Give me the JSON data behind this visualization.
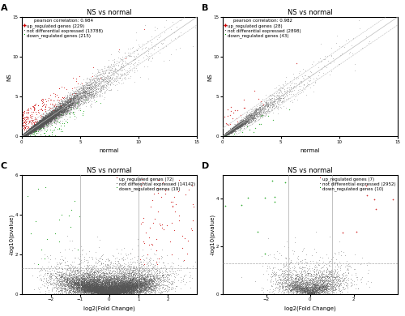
{
  "title": "NS vs normal",
  "scatter_A": {
    "pearson": "0.984",
    "n_up": 229,
    "n_not": 13788,
    "n_down": 215,
    "xlabel": "normal",
    "ylabel": "NS",
    "xlim": [
      0,
      15
    ],
    "ylim": [
      0,
      15
    ],
    "xticks": [
      0,
      5,
      10,
      15
    ],
    "yticks": [
      0,
      5,
      10,
      15
    ]
  },
  "scatter_B": {
    "pearson": "0.982",
    "n_up": 28,
    "n_not": 2898,
    "n_down": 43,
    "xlabel": "normal",
    "ylabel": "NS",
    "xlim": [
      0,
      15
    ],
    "ylim": [
      0,
      15
    ],
    "xticks": [
      0,
      5,
      10,
      15
    ],
    "yticks": [
      0,
      5,
      10,
      15
    ]
  },
  "volcano_C": {
    "n_up": 72,
    "n_not": 14142,
    "n_down": 19,
    "xlabel": "log2(Fold Change)",
    "ylabel": "-log10(pvalue)",
    "xlim": [
      -3,
      3
    ],
    "ylim": [
      -0.1,
      6
    ],
    "xticks": [
      -2,
      -1,
      0,
      1,
      2
    ],
    "yticks": [
      0,
      2,
      4,
      6
    ]
  },
  "volcano_D": {
    "n_up": 7,
    "n_not": 2952,
    "n_down": 10,
    "xlabel": "log2(Fold Change)",
    "ylabel": "-log10(pvalue)",
    "xlim": [
      -4,
      4
    ],
    "ylim": [
      -0.1,
      5
    ],
    "xticks": [
      -2,
      0,
      2
    ],
    "yticks": [
      0,
      2,
      4
    ]
  },
  "colors": {
    "up": "#CC0000",
    "not": "#555555",
    "down": "#009900",
    "line": "#AAAAAA",
    "diagonal": "#BBBBBB"
  },
  "bg_color": "#FFFFFF",
  "fontsize_title": 6,
  "fontsize_label": 5,
  "fontsize_legend": 4,
  "fontsize_tick": 4,
  "label_A_fontsize": 9
}
